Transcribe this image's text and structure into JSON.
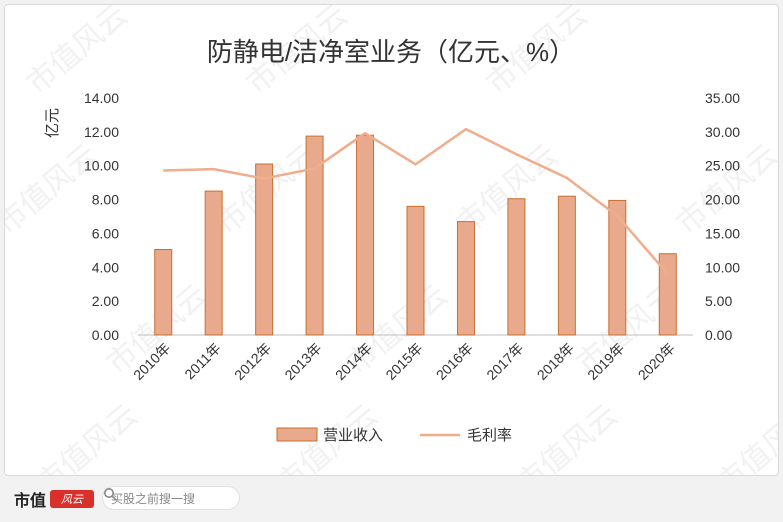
{
  "chart_data": {
    "type": "bar",
    "title": "防静电/洁净室业务（亿元、%）",
    "ylabel": "亿元",
    "categories": [
      "2010年",
      "2011年",
      "2012年",
      "2013年",
      "2014年",
      "2015年",
      "2016年",
      "2017年",
      "2018年",
      "2019年",
      "2020年"
    ],
    "series": [
      {
        "name": "营业收入",
        "type": "bar",
        "axis": "left",
        "color": "#e8a98c",
        "border": "#c8702f",
        "values": [
          5.05,
          8.5,
          10.1,
          11.75,
          11.8,
          7.6,
          6.7,
          8.05,
          8.2,
          7.95,
          4.8
        ]
      },
      {
        "name": "毛利率",
        "type": "line",
        "axis": "right",
        "color": "#f0ad8c",
        "values": [
          24.3,
          24.5,
          23.1,
          24.6,
          29.8,
          25.2,
          30.4,
          26.7,
          23.2,
          17.6,
          9.0
        ]
      }
    ],
    "ylim_left": [
      0,
      14
    ],
    "ylim_right": [
      0,
      35
    ],
    "yticks_left": [
      "0.00",
      "2.00",
      "4.00",
      "6.00",
      "8.00",
      "10.00",
      "12.00",
      "14.00"
    ],
    "yticks_right": [
      "0.00",
      "5.00",
      "10.00",
      "15.00",
      "20.00",
      "25.00",
      "30.00",
      "35.00"
    ],
    "grid": false,
    "legend_position": "bottom"
  },
  "watermark": "市值风云",
  "footer": {
    "brand": "市值",
    "brand_logo": "风云",
    "search_placeholder": "买股之前搜一搜"
  }
}
